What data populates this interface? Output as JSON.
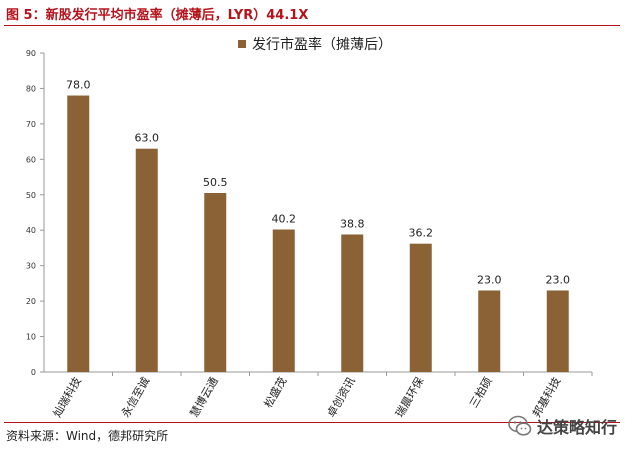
{
  "figure_title": "图 5：新股发行平均市盈率（摊薄后，LYR）44.1X",
  "source": "资料来源：Wind，德邦研究所",
  "watermark": "达策略知行",
  "colors": {
    "bar": "#8b6236",
    "title": "#b5121b",
    "axis": "#999999"
  },
  "chart_data": {
    "type": "bar",
    "categories": [
      "灿瑞科技",
      "永信至诚",
      "慧博云通",
      "松盛茂",
      "卓创资讯",
      "瑞晨环保",
      "三柏硕",
      "邦基科技"
    ],
    "series": [
      {
        "name": "发行市盈率（摊薄后）",
        "values": [
          78.0,
          63.0,
          50.5,
          40.2,
          38.8,
          36.2,
          23.0,
          23.0
        ]
      }
    ],
    "value_labels": [
      "78.0",
      "63.0",
      "50.5",
      "40.2",
      "38.8",
      "36.2",
      "23.0",
      "23.0"
    ],
    "yticks": [
      "0",
      "10",
      "20",
      "30",
      "40",
      "50",
      "60",
      "70",
      "80",
      "90"
    ],
    "ylim": [
      0,
      90
    ],
    "legend_position": "top-center",
    "grid": false
  }
}
